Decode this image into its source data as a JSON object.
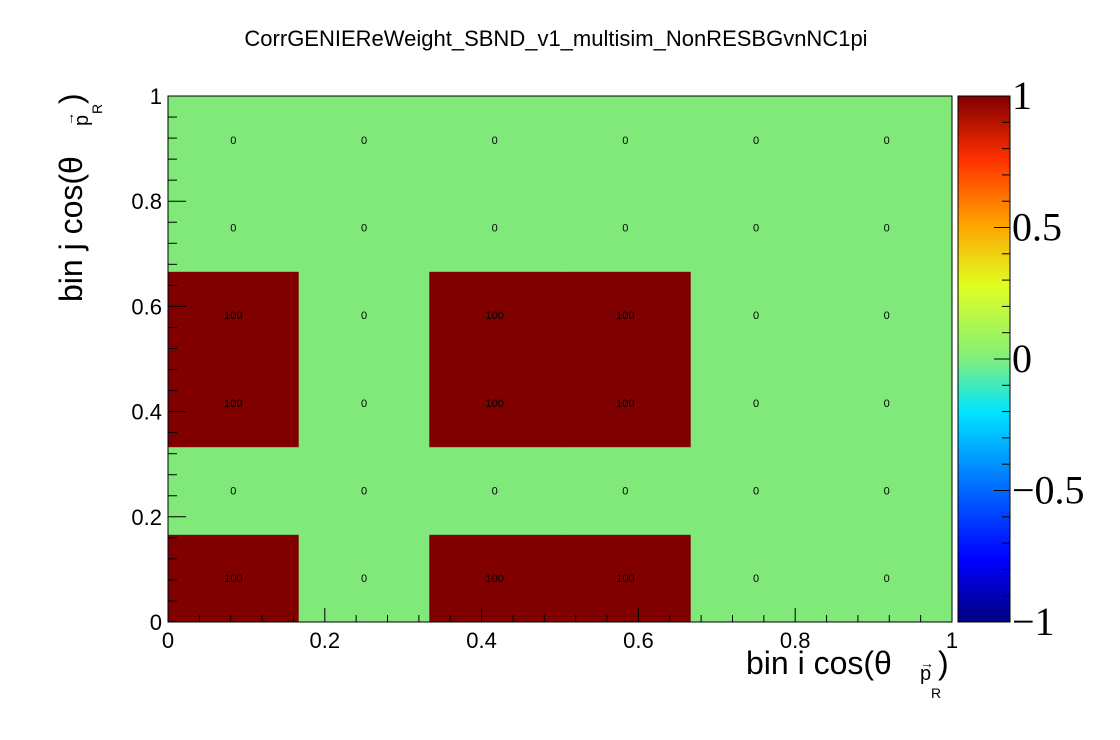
{
  "chart_data": {
    "type": "heatmap",
    "title": "CorrGENIEReWeight_SBND_v1_multisim_NonRESBGvnNC1pi",
    "xlabel": "bin i cos(θ_p_R)",
    "ylabel": "bin j cos(θ_p_R)",
    "xlim": [
      0,
      1
    ],
    "ylim": [
      0,
      1
    ],
    "x_ticks": [
      "0",
      "0.2",
      "0.4",
      "0.6",
      "0.8",
      "1"
    ],
    "y_ticks": [
      "0",
      "0.2",
      "0.4",
      "0.6",
      "0.8",
      "1"
    ],
    "x_bin_edges": [
      0,
      0.1667,
      0.3333,
      0.5,
      0.6667,
      0.8333,
      1
    ],
    "y_bin_edges": [
      0,
      0.1667,
      0.3333,
      0.5,
      0.6667,
      0.8333,
      1
    ],
    "cells": [
      [
        100,
        0,
        100,
        100,
        0,
        0
      ],
      [
        0,
        0,
        0,
        0,
        0,
        0
      ],
      [
        100,
        0,
        100,
        100,
        0,
        0
      ],
      [
        100,
        0,
        100,
        100,
        0,
        0
      ],
      [
        0,
        0,
        0,
        0,
        0,
        0
      ],
      [
        0,
        0,
        0,
        0,
        0,
        0
      ]
    ],
    "colorbar": {
      "range": [
        -1,
        1
      ],
      "ticks": [
        "1",
        "0.5",
        "0",
        "−0.5",
        "−1"
      ],
      "palette": [
        "#00007f",
        "#0000ff",
        "#0080ff",
        "#00e5ff",
        "#80ef7b",
        "#e0ff20",
        "#ffa000",
        "#ff3000",
        "#800000"
      ]
    },
    "colors": {
      "zero": "#80e97a",
      "high": "#800000"
    }
  }
}
